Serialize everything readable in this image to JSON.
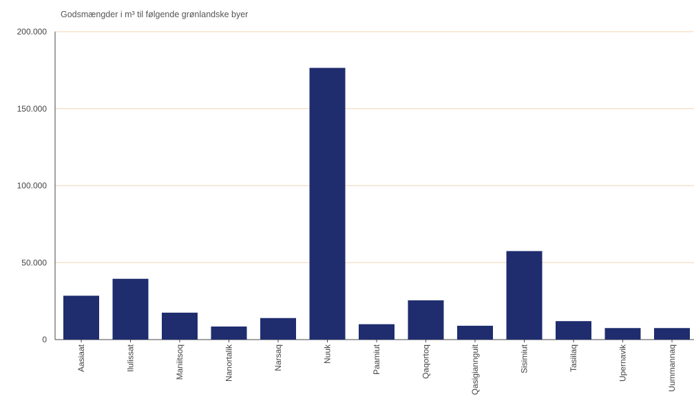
{
  "chart_data": {
    "type": "bar",
    "title": "Godsmængder i m³ til følgende grønlandske byer",
    "xlabel": "",
    "ylabel": "",
    "categories": [
      "Aasiaat",
      "Ilulissat",
      "Maniitsoq",
      "Nanortalik",
      "Narsaq",
      "Nuuk",
      "Paamiut",
      "Qaqortoq",
      "Qasigiannguit",
      "Sisimiut",
      "Tasiilaq",
      "Upernavik",
      "Uummannaq"
    ],
    "values": [
      28500,
      39500,
      17500,
      8500,
      14000,
      176500,
      10000,
      25500,
      9000,
      57500,
      12000,
      7500,
      7500
    ],
    "ylim": [
      0,
      200000
    ],
    "yticks": [
      "0",
      "50.000",
      "100.000",
      "150.000",
      "200.000"
    ],
    "grid": true,
    "bar_color": "#1f2d6e",
    "grid_color": "#f3dcc2",
    "axis_color": "#444444"
  }
}
